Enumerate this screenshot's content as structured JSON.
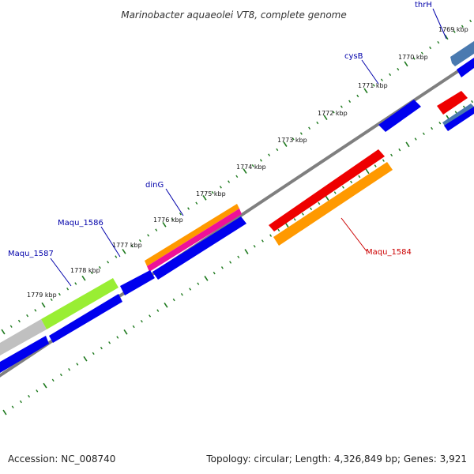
{
  "title": "Marinobacter aquaeolei VT8, complete genome",
  "kbp_labels": [
    "1769 kbp",
    "1770 kbp",
    "1771 kbp",
    "1772 kbp",
    "1773 kbp",
    "1774 kbp",
    "1775 kbp",
    "1776 kbp",
    "1777 kbp",
    "1778 kbp",
    "1779 kbp"
  ],
  "gene_labels": {
    "thrH": "thrH",
    "cysB": "cysB",
    "dinG": "dinG",
    "maqu_1586": "Maqu_1586",
    "maqu_1587": "Maqu_1587",
    "maqu_1584": "Maqu_1584"
  },
  "footer": {
    "accession": "Accession: NC_008740",
    "summary": "Topology: circular; Length: 4,326,849 bp; Genes: 3,921"
  },
  "colors": {
    "backbone": "#7f7f7f",
    "tick": "#1f7a1f",
    "gene_forward": "#0000ee",
    "gene_reverse": "#ee0000",
    "gene_orange": "#ff9900",
    "gene_magenta": "#ee1199",
    "gene_lime": "#99ee33",
    "gene_grey": "#c0c0c0",
    "gene_steel": "#4a7ab0",
    "label_blue": "#0000aa",
    "label_red": "#cc0000"
  }
}
